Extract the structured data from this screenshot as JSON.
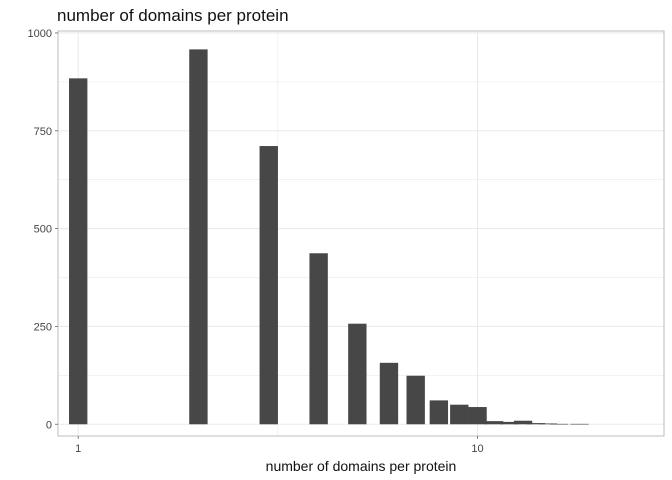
{
  "chart_data": {
    "type": "bar",
    "title": "number of domains per protein",
    "xlabel": "number of domains per protein",
    "ylabel": "",
    "x_scale": "log10",
    "x_ticks": [
      {
        "value": 1,
        "label": "1"
      },
      {
        "value": 10,
        "label": "10"
      }
    ],
    "y_ticks": [
      {
        "value": 0,
        "label": "0"
      },
      {
        "value": 250,
        "label": "250"
      },
      {
        "value": 500,
        "label": "500"
      },
      {
        "value": 750,
        "label": "750"
      },
      {
        "value": 1000,
        "label": "1000"
      }
    ],
    "xlim": [
      0.89,
      29.3
    ],
    "ylim": [
      -30,
      1005
    ],
    "grid": true,
    "bars": [
      {
        "x": 1,
        "count": 884
      },
      {
        "x": 2,
        "count": 958
      },
      {
        "x": 3,
        "count": 711
      },
      {
        "x": 4,
        "count": 437
      },
      {
        "x": 5,
        "count": 257
      },
      {
        "x": 6,
        "count": 157
      },
      {
        "x": 7,
        "count": 124
      },
      {
        "x": 8,
        "count": 61
      },
      {
        "x": 9,
        "count": 50
      },
      {
        "x": 10,
        "count": 44
      },
      {
        "x": 11,
        "count": 8
      },
      {
        "x": 12,
        "count": 6
      },
      {
        "x": 13,
        "count": 9
      },
      {
        "x": 14,
        "count": 3
      },
      {
        "x": 15,
        "count": 2
      },
      {
        "x": 16,
        "count": 1
      },
      {
        "x": 18,
        "count": 1
      }
    ],
    "colors": {
      "bar": "#474747",
      "grid": "#ebebeb",
      "panel_border": "#bdbdbd"
    }
  }
}
